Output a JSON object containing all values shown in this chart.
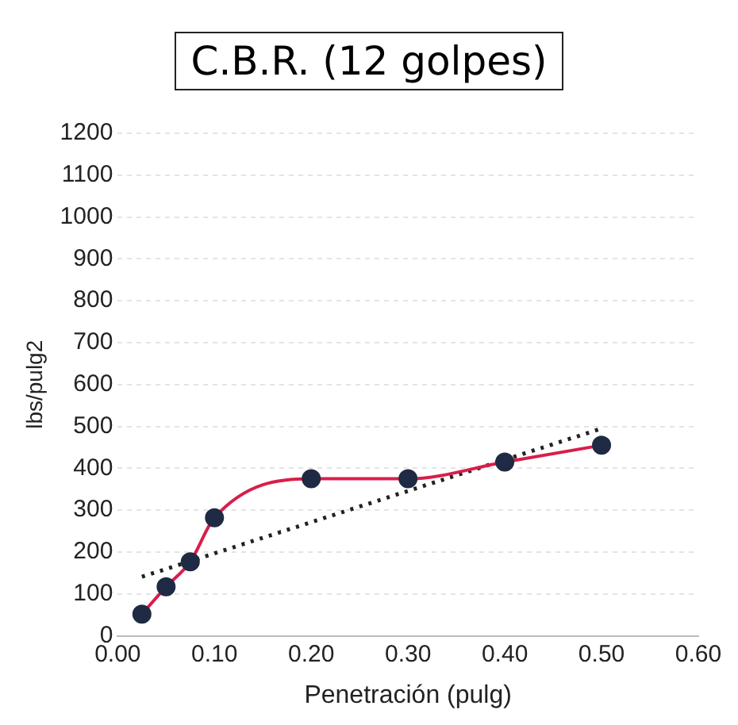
{
  "chart_data": {
    "type": "line",
    "title": "C.B.R. (12 golpes)",
    "xlabel": "Penetración (pulg)",
    "ylabel": "lbs/pulg2",
    "x": [
      0.025,
      0.05,
      0.075,
      0.1,
      0.2,
      0.3,
      0.4,
      0.5
    ],
    "series": [
      {
        "type": "line",
        "color": "#d81e4a",
        "colors": [
          "#1f2a44",
          "#1f2a44",
          "#1f2a44",
          "#1f2a44",
          "#1f2a44",
          "#1f2a44",
          "#1f2a44",
          "#1f2a44"
        ],
        "marker": "circle",
        "values": [
          52,
          117,
          177,
          282,
          375,
          375,
          415,
          455
        ]
      },
      {
        "type": "line",
        "x": [
          0.025,
          0.5
        ],
        "color": "#222222",
        "marker": "none",
        "line_style": "dotted",
        "values": [
          141,
          495
        ]
      }
    ],
    "xlim": [
      0,
      0.6
    ],
    "xticks": [
      {
        "value": 0,
        "label": "0.00"
      },
      {
        "value": 0.1,
        "label": "0.10"
      },
      {
        "value": 0.2,
        "label": "0.20"
      },
      {
        "value": 0.3,
        "label": "0.30"
      },
      {
        "value": 0.4,
        "label": "0.40"
      },
      {
        "value": 0.5,
        "label": "0.50"
      },
      {
        "value": 0.6,
        "label": "0.60"
      }
    ],
    "ylim": [
      0,
      1200
    ],
    "yticks": [
      0,
      100,
      200,
      300,
      400,
      500,
      600,
      700,
      800,
      900,
      1000,
      1100,
      1200
    ],
    "grid": "y",
    "legend": false
  }
}
